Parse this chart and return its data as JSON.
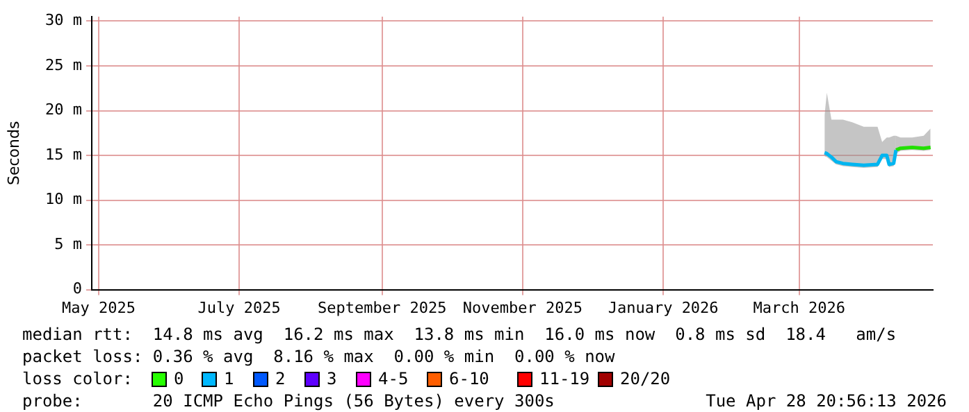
{
  "chart_data": {
    "type": "line",
    "ylabel": "Seconds",
    "marker": "none",
    "grid": true,
    "legend": false,
    "xlim": [
      "2025-04-28",
      "2026-04-28"
    ],
    "xticks": [
      {
        "value": "2025-05-01",
        "label": "May 2025"
      },
      {
        "value": "2025-07-01",
        "label": "July 2025"
      },
      {
        "value": "2025-09-01",
        "label": "September 2025"
      },
      {
        "value": "2025-11-01",
        "label": "November 2025"
      },
      {
        "value": "2026-01-01",
        "label": "January 2026"
      },
      {
        "value": "2026-03-01",
        "label": "March 2026"
      }
    ],
    "ylim": [
      0,
      30.5
    ],
    "yticks": [
      {
        "value": 0,
        "label": "0"
      },
      {
        "value": 5,
        "label": "5 m"
      },
      {
        "value": 10,
        "label": "10 m"
      },
      {
        "value": 15,
        "label": "15 m"
      },
      {
        "value": 20,
        "label": "20 m"
      },
      {
        "value": 25,
        "label": "25 m"
      },
      {
        "value": 30,
        "label": "30 m"
      }
    ],
    "series": [
      {
        "color": "#00b5f0",
        "x": [
          "2026-03-12",
          "2026-03-13",
          "2026-03-15",
          "2026-03-17",
          "2026-03-20",
          "2026-03-24",
          "2026-03-29",
          "2026-04-04",
          "2026-04-06",
          "2026-04-08",
          "2026-04-09",
          "2026-04-11",
          "2026-04-12"
        ],
        "values": [
          15.3,
          15.2,
          14.8,
          14.3,
          14.1,
          14.0,
          13.9,
          14.0,
          15.0,
          15.0,
          14.0,
          14.1,
          15.6
        ],
        "lower": [
          14.9,
          14.8,
          14.4,
          14.0,
          13.8,
          13.7,
          13.6,
          13.7,
          14.6,
          14.6,
          13.7,
          13.8,
          15.2
        ],
        "upper": [
          19.5,
          22.0,
          19.0,
          19.0,
          19.0,
          18.7,
          18.2,
          18.2,
          16.5,
          17.0,
          17.0,
          17.2,
          17.2
        ]
      },
      {
        "color": "#22e000",
        "x": [
          "2026-04-12",
          "2026-04-14",
          "2026-04-19",
          "2026-04-24",
          "2026-04-27"
        ],
        "values": [
          15.6,
          15.8,
          15.9,
          15.8,
          15.9
        ],
        "lower": [
          15.2,
          15.5,
          15.6,
          15.5,
          15.6
        ],
        "upper": [
          17.2,
          17.0,
          17.0,
          17.2,
          18.0
        ]
      }
    ],
    "annotations": [
      "median rtt:  14.8 ms avg  16.2 ms max  13.8 ms min  16.0 ms now  0.8 ms sd  18.4   am/s",
      "packet loss: 0.36 % avg  8.16 % max  0.00 % min  0.00 % now",
      "loss color:",
      "0",
      "1",
      "2",
      "3",
      "4-5",
      "6-10",
      "11-19",
      "20/20",
      "probe:       20 ICMP Echo Pings (56 Bytes) every 300s",
      "Tue Apr 28 20:56:13 2026"
    ]
  }
}
